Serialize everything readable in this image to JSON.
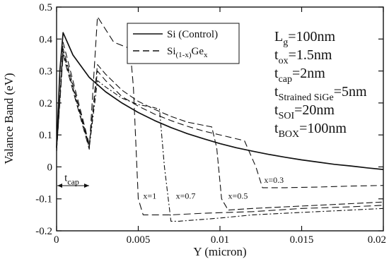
{
  "chart_data": {
    "type": "line",
    "xlabel": "Y (micron)",
    "ylabel": "Valance Band (eV)",
    "xlim": [
      0,
      0.02
    ],
    "ylim": [
      -0.2,
      0.5
    ],
    "xticks": [
      0,
      0.005,
      0.01,
      0.015,
      0.02
    ],
    "xtick_labels": [
      "0",
      "0.005",
      "0.01",
      "0.015",
      "0.02"
    ],
    "yticks": [
      -0.2,
      -0.1,
      0,
      0.1,
      0.2,
      0.3,
      0.4,
      0.5
    ],
    "ytick_labels": [
      "-0.2",
      "-0.1",
      "0",
      "0.1",
      "0.2",
      "0.3",
      "0.4",
      "0.5"
    ],
    "grid": false,
    "legend": {
      "position": "top-center",
      "entries": [
        {
          "label": "Si (Control)",
          "style": "solid"
        },
        {
          "label_base": "Si",
          "label_sub": "(1-x)",
          "label_tail": "Ge",
          "label_tail_sub": "x",
          "style": "dashed"
        }
      ]
    },
    "parameters": [
      {
        "base": "L",
        "sub": "g",
        "value": "=100nm"
      },
      {
        "base": "t",
        "sub": "ox",
        "value": "=1.5nm"
      },
      {
        "base": "t",
        "sub": "cap",
        "value": "=2nm"
      },
      {
        "base": "t",
        "sub": "Strained SiGe",
        "value": "=5nm"
      },
      {
        "base": "t",
        "sub": "SOI",
        "value": "=20nm"
      },
      {
        "base": "t",
        "sub": "BOX",
        "value": "=100nm"
      }
    ],
    "annotations": [
      {
        "text_base": "t",
        "text_sub": "cap",
        "x": 0.001,
        "y": -0.06
      },
      {
        "text": "x=1",
        "x": 0.0053,
        "y": -0.1
      },
      {
        "text": "x=0.7",
        "x": 0.0073,
        "y": -0.1
      },
      {
        "text": "x=0.5",
        "x": 0.0105,
        "y": -0.1
      },
      {
        "text": "x=0.3",
        "x": 0.0127,
        "y": -0.05
      }
    ],
    "series": [
      {
        "name": "Si (Control)",
        "style": "solid",
        "points": [
          [
            0,
            0.06
          ],
          [
            0.0002,
            0.3
          ],
          [
            0.0004,
            0.42
          ],
          [
            0.001,
            0.35
          ],
          [
            0.002,
            0.28
          ],
          [
            0.003,
            0.235
          ],
          [
            0.004,
            0.2
          ],
          [
            0.005,
            0.17
          ],
          [
            0.006,
            0.145
          ],
          [
            0.007,
            0.123
          ],
          [
            0.008,
            0.104
          ],
          [
            0.009,
            0.088
          ],
          [
            0.01,
            0.073
          ],
          [
            0.011,
            0.06
          ],
          [
            0.012,
            0.049
          ],
          [
            0.013,
            0.039
          ],
          [
            0.014,
            0.03
          ],
          [
            0.015,
            0.022
          ],
          [
            0.016,
            0.015
          ],
          [
            0.017,
            0.008
          ],
          [
            0.018,
            0.003
          ],
          [
            0.019,
            -0.003
          ],
          [
            0.02,
            -0.008
          ]
        ]
      },
      {
        "name": "x=0.3",
        "style": "dashed",
        "points": [
          [
            0,
            0.05
          ],
          [
            0.0004,
            0.39
          ],
          [
            0.002,
            0.07
          ],
          [
            0.0025,
            0.3
          ],
          [
            0.003,
            0.27
          ],
          [
            0.004,
            0.22
          ],
          [
            0.005,
            0.19
          ],
          [
            0.006,
            0.165
          ],
          [
            0.007,
            0.145
          ],
          [
            0.008,
            0.127
          ],
          [
            0.009,
            0.112
          ],
          [
            0.01,
            0.1
          ],
          [
            0.011,
            0.088
          ],
          [
            0.0115,
            0.082
          ],
          [
            0.0122,
            0.0
          ],
          [
            0.0126,
            -0.065
          ],
          [
            0.014,
            -0.065
          ],
          [
            0.016,
            -0.063
          ],
          [
            0.018,
            -0.06
          ],
          [
            0.02,
            -0.058
          ]
        ]
      },
      {
        "name": "x=0.5",
        "style": "dashed",
        "points": [
          [
            0,
            0.05
          ],
          [
            0.0004,
            0.37
          ],
          [
            0.002,
            0.065
          ],
          [
            0.0025,
            0.32
          ],
          [
            0.003,
            0.29
          ],
          [
            0.004,
            0.24
          ],
          [
            0.005,
            0.205
          ],
          [
            0.006,
            0.18
          ],
          [
            0.007,
            0.158
          ],
          [
            0.008,
            0.14
          ],
          [
            0.0095,
            0.125
          ],
          [
            0.0098,
            0.06
          ],
          [
            0.0101,
            -0.1
          ],
          [
            0.0105,
            -0.135
          ],
          [
            0.012,
            -0.13
          ],
          [
            0.014,
            -0.125
          ],
          [
            0.016,
            -0.12
          ],
          [
            0.018,
            -0.115
          ],
          [
            0.02,
            -0.11
          ]
        ]
      },
      {
        "name": "x=0.7",
        "style": "dashed",
        "points": [
          [
            0,
            0.05
          ],
          [
            0.0004,
            0.36
          ],
          [
            0.002,
            0.06
          ],
          [
            0.0025,
            0.27
          ],
          [
            0.003,
            0.25
          ],
          [
            0.004,
            0.215
          ],
          [
            0.005,
            0.195
          ],
          [
            0.006,
            0.185
          ],
          [
            0.0063,
            0.18
          ],
          [
            0.0066,
            0.0
          ],
          [
            0.007,
            -0.17
          ],
          [
            0.0075,
            -0.17
          ],
          [
            0.01,
            -0.16
          ],
          [
            0.012,
            -0.15
          ],
          [
            0.014,
            -0.145
          ],
          [
            0.016,
            -0.14
          ],
          [
            0.018,
            -0.135
          ],
          [
            0.02,
            -0.13
          ]
        ]
      },
      {
        "name": "x=1",
        "style": "dashed",
        "points": [
          [
            0,
            0.05
          ],
          [
            0.0004,
            0.35
          ],
          [
            0.002,
            0.055
          ],
          [
            0.0025,
            0.47
          ],
          [
            0.003,
            0.43
          ],
          [
            0.0035,
            0.39
          ],
          [
            0.0045,
            0.37
          ],
          [
            0.0047,
            0.25
          ],
          [
            0.005,
            -0.1
          ],
          [
            0.0053,
            -0.15
          ],
          [
            0.007,
            -0.15
          ],
          [
            0.009,
            -0.145
          ],
          [
            0.012,
            -0.14
          ],
          [
            0.015,
            -0.13
          ],
          [
            0.018,
            -0.125
          ],
          [
            0.02,
            -0.12
          ]
        ]
      }
    ]
  }
}
